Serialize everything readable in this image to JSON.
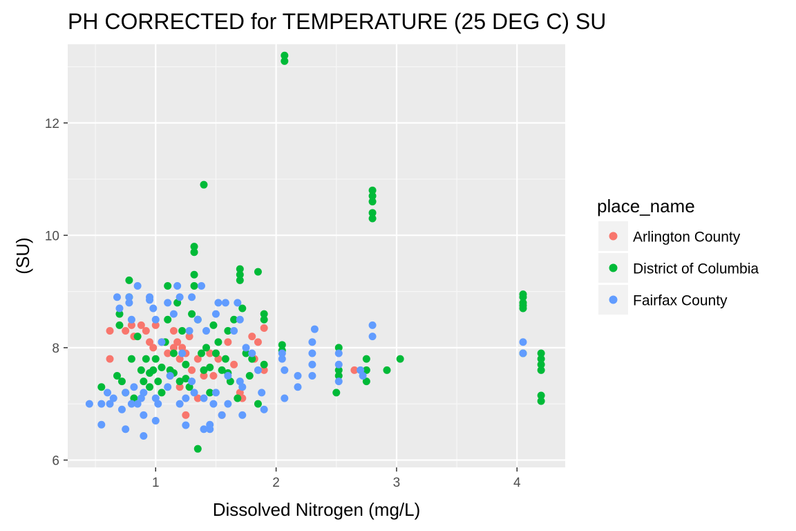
{
  "chart_data": {
    "type": "scatter",
    "title": "PH CORRECTED for TEMPERATURE (25 DEG C) SU",
    "xlabel": "Dissolved Nitrogen (mg/L)",
    "ylabel": "(SU)",
    "xlim": [
      0.27,
      4.4
    ],
    "ylim": [
      5.87,
      13.4
    ],
    "xticks": [
      1,
      2,
      3,
      4
    ],
    "yticks": [
      6,
      8,
      10,
      12
    ],
    "grid": true,
    "legend_title": "place_name",
    "legend_position": "right",
    "series": [
      {
        "name": "Arlington County",
        "color": "#F8766D",
        "points": [
          [
            0.62,
            8.3
          ],
          [
            0.62,
            7.8
          ],
          [
            0.75,
            8.3
          ],
          [
            0.8,
            8.4
          ],
          [
            0.82,
            8.2
          ],
          [
            0.88,
            8.4
          ],
          [
            0.92,
            8.3
          ],
          [
            0.95,
            8.1
          ],
          [
            0.98,
            8.0
          ],
          [
            1.0,
            8.4
          ],
          [
            1.05,
            8.1
          ],
          [
            1.1,
            7.9
          ],
          [
            1.15,
            8.0
          ],
          [
            1.18,
            8.1
          ],
          [
            1.2,
            7.8
          ],
          [
            1.22,
            8.0
          ],
          [
            1.25,
            7.9
          ],
          [
            1.28,
            8.2
          ],
          [
            1.3,
            7.6
          ],
          [
            1.35,
            7.8
          ],
          [
            1.4,
            7.5
          ],
          [
            1.45,
            7.9
          ],
          [
            1.48,
            7.5
          ],
          [
            1.5,
            7.9
          ],
          [
            1.52,
            7.8
          ],
          [
            1.55,
            6.8
          ],
          [
            1.6,
            8.1
          ],
          [
            1.65,
            7.7
          ],
          [
            1.7,
            7.2
          ],
          [
            1.72,
            7.1
          ],
          [
            1.8,
            8.2
          ],
          [
            1.82,
            7.8
          ],
          [
            1.85,
            8.1
          ],
          [
            1.9,
            8.35
          ],
          [
            1.9,
            7.6
          ],
          [
            1.25,
            6.8
          ],
          [
            1.35,
            7.1
          ],
          [
            2.65,
            7.6
          ],
          [
            1.12,
            7.5
          ],
          [
            1.2,
            7.3
          ],
          [
            1.15,
            8.3
          ]
        ]
      },
      {
        "name": "District of Columbia",
        "color": "#00BA38",
        "points": [
          [
            0.55,
            7.3
          ],
          [
            0.68,
            7.5
          ],
          [
            0.7,
            8.6
          ],
          [
            0.7,
            8.4
          ],
          [
            0.72,
            7.4
          ],
          [
            0.75,
            7.2
          ],
          [
            0.78,
            9.2
          ],
          [
            0.78,
            8.9
          ],
          [
            0.8,
            7.8
          ],
          [
            0.82,
            7.1
          ],
          [
            0.85,
            8.2
          ],
          [
            0.88,
            7.6
          ],
          [
            0.9,
            7.4
          ],
          [
            0.92,
            7.8
          ],
          [
            0.95,
            7.3
          ],
          [
            0.98,
            7.6
          ],
          [
            1.0,
            7.8
          ],
          [
            1.02,
            7.4
          ],
          [
            1.05,
            7.2
          ],
          [
            1.08,
            8.1
          ],
          [
            1.1,
            9.1
          ],
          [
            1.1,
            8.5
          ],
          [
            1.12,
            7.6
          ],
          [
            1.15,
            7.9
          ],
          [
            1.18,
            8.8
          ],
          [
            1.2,
            7.4
          ],
          [
            1.22,
            8.3
          ],
          [
            1.25,
            7.7
          ],
          [
            1.28,
            7.3
          ],
          [
            1.3,
            8.6
          ],
          [
            1.32,
            9.8
          ],
          [
            1.32,
            9.7
          ],
          [
            1.32,
            9.3
          ],
          [
            1.32,
            9.1
          ],
          [
            1.35,
            6.2
          ],
          [
            1.35,
            8.5
          ],
          [
            1.38,
            7.9
          ],
          [
            1.4,
            10.9
          ],
          [
            1.4,
            7.6
          ],
          [
            1.42,
            8.0
          ],
          [
            1.45,
            7.2
          ],
          [
            1.48,
            8.4
          ],
          [
            1.5,
            7.9
          ],
          [
            1.52,
            8.1
          ],
          [
            1.55,
            7.6
          ],
          [
            1.58,
            7.8
          ],
          [
            1.6,
            8.3
          ],
          [
            1.62,
            7.4
          ],
          [
            1.65,
            8.5
          ],
          [
            1.68,
            7.1
          ],
          [
            1.7,
            9.4
          ],
          [
            1.7,
            9.3
          ],
          [
            1.7,
            9.2
          ],
          [
            1.72,
            8.7
          ],
          [
            1.75,
            7.9
          ],
          [
            1.78,
            7.5
          ],
          [
            1.8,
            7.8
          ],
          [
            1.85,
            9.35
          ],
          [
            1.85,
            7.0
          ],
          [
            1.9,
            8.6
          ],
          [
            1.9,
            8.5
          ],
          [
            1.9,
            7.7
          ],
          [
            2.05,
            8.05
          ],
          [
            2.05,
            7.95
          ],
          [
            2.07,
            13.2
          ],
          [
            2.07,
            13.1
          ],
          [
            2.5,
            7.2
          ],
          [
            2.52,
            8.0
          ],
          [
            2.52,
            7.6
          ],
          [
            2.52,
            7.5
          ],
          [
            2.75,
            7.8
          ],
          [
            2.75,
            7.6
          ],
          [
            2.75,
            7.4
          ],
          [
            2.8,
            10.8
          ],
          [
            2.8,
            10.7
          ],
          [
            2.8,
            10.6
          ],
          [
            2.8,
            10.4
          ],
          [
            2.8,
            10.3
          ],
          [
            2.92,
            7.6
          ],
          [
            3.03,
            7.8
          ],
          [
            4.05,
            8.95
          ],
          [
            4.05,
            8.9
          ],
          [
            4.05,
            8.8
          ],
          [
            4.05,
            8.75
          ],
          [
            4.05,
            8.7
          ],
          [
            4.05,
            7.9
          ],
          [
            4.2,
            7.9
          ],
          [
            4.2,
            7.8
          ],
          [
            4.2,
            7.7
          ],
          [
            4.2,
            7.6
          ],
          [
            4.2,
            7.15
          ],
          [
            4.2,
            7.05
          ],
          [
            1.15,
            7.55
          ],
          [
            1.25,
            7.45
          ],
          [
            1.45,
            7.65
          ],
          [
            1.6,
            7.55
          ],
          [
            1.05,
            7.65
          ],
          [
            0.95,
            7.55
          ]
        ]
      },
      {
        "name": "Fairfax County",
        "color": "#619CFF",
        "points": [
          [
            0.45,
            7.0
          ],
          [
            0.55,
            7.0
          ],
          [
            0.55,
            6.63
          ],
          [
            0.6,
            7.2
          ],
          [
            0.62,
            7.0
          ],
          [
            0.65,
            7.1
          ],
          [
            0.68,
            8.9
          ],
          [
            0.7,
            8.7
          ],
          [
            0.72,
            6.9
          ],
          [
            0.75,
            7.2
          ],
          [
            0.75,
            6.55
          ],
          [
            0.78,
            8.9
          ],
          [
            0.78,
            8.8
          ],
          [
            0.8,
            8.5
          ],
          [
            0.82,
            7.3
          ],
          [
            0.85,
            7.0
          ],
          [
            0.85,
            9.1
          ],
          [
            0.88,
            7.1
          ],
          [
            0.9,
            6.8
          ],
          [
            0.9,
            6.43
          ],
          [
            0.95,
            8.9
          ],
          [
            0.95,
            8.85
          ],
          [
            0.98,
            8.7
          ],
          [
            1.0,
            8.5
          ],
          [
            1.0,
            6.7
          ],
          [
            1.02,
            7.0
          ],
          [
            1.05,
            8.1
          ],
          [
            1.1,
            8.8
          ],
          [
            1.12,
            7.5
          ],
          [
            1.15,
            8.6
          ],
          [
            1.18,
            9.1
          ],
          [
            1.2,
            8.9
          ],
          [
            1.22,
            7.9
          ],
          [
            1.25,
            7.1
          ],
          [
            1.25,
            6.62
          ],
          [
            1.28,
            8.3
          ],
          [
            1.3,
            8.9
          ],
          [
            1.32,
            7.2
          ],
          [
            1.35,
            8.5
          ],
          [
            1.38,
            9.1
          ],
          [
            1.4,
            6.55
          ],
          [
            1.42,
            8.3
          ],
          [
            1.45,
            6.55
          ],
          [
            1.45,
            6.63
          ],
          [
            1.48,
            7.0
          ],
          [
            1.5,
            8.6
          ],
          [
            1.52,
            8.8
          ],
          [
            1.55,
            6.8
          ],
          [
            1.58,
            8.8
          ],
          [
            1.6,
            7.5
          ],
          [
            1.65,
            8.3
          ],
          [
            1.68,
            8.8
          ],
          [
            1.7,
            8.5
          ],
          [
            1.72,
            7.3
          ],
          [
            1.72,
            6.8
          ],
          [
            1.75,
            8.0
          ],
          [
            1.8,
            7.9
          ],
          [
            1.85,
            7.6
          ],
          [
            1.88,
            7.2
          ],
          [
            1.9,
            6.9
          ],
          [
            2.05,
            7.9
          ],
          [
            2.05,
            7.8
          ],
          [
            2.07,
            7.6
          ],
          [
            2.07,
            7.1
          ],
          [
            2.18,
            7.5
          ],
          [
            2.18,
            7.3
          ],
          [
            2.3,
            8.1
          ],
          [
            2.3,
            7.9
          ],
          [
            2.3,
            7.7
          ],
          [
            2.3,
            7.5
          ],
          [
            2.32,
            8.33
          ],
          [
            2.52,
            7.9
          ],
          [
            2.52,
            7.7
          ],
          [
            2.52,
            7.4
          ],
          [
            2.7,
            7.6
          ],
          [
            2.72,
            7.5
          ],
          [
            2.8,
            8.4
          ],
          [
            2.8,
            8.2
          ],
          [
            4.05,
            8.1
          ],
          [
            4.05,
            7.9
          ],
          [
            0.8,
            7.0
          ],
          [
            1.0,
            7.1
          ],
          [
            1.2,
            7.0
          ],
          [
            1.4,
            7.1
          ],
          [
            1.6,
            7.0
          ],
          [
            0.9,
            7.2
          ],
          [
            1.1,
            7.3
          ],
          [
            1.3,
            7.4
          ],
          [
            1.5,
            7.2
          ],
          [
            1.7,
            7.4
          ]
        ]
      }
    ]
  }
}
